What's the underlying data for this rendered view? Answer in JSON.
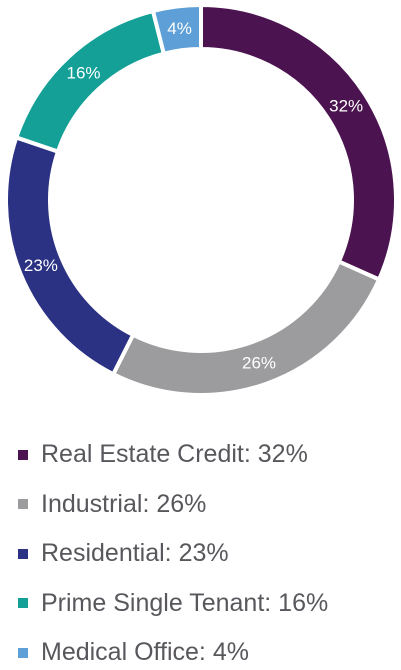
{
  "chart_data": {
    "type": "pie",
    "donut": true,
    "slices": [
      {
        "name": "Real Estate Credit",
        "value": 32,
        "label": "32%",
        "legend": "Real Estate Credit: 32%",
        "color": "#4b1450"
      },
      {
        "name": "Industrial",
        "value": 26,
        "label": "26%",
        "legend": "Industrial: 26%",
        "color": "#9c9b9d"
      },
      {
        "name": "Residential",
        "value": 23,
        "label": "23%",
        "legend": "Residential: 23%",
        "color": "#2b3183"
      },
      {
        "name": "Prime Single Tenant",
        "value": 16,
        "label": "16%",
        "legend": "Prime Single Tenant: 16%",
        "color": "#14a097"
      },
      {
        "name": "Medical Office",
        "value": 4,
        "label": "4%",
        "legend": "Medical Office: 4%",
        "color": "#5d9fd6"
      }
    ],
    "legend_position": "bottom"
  }
}
